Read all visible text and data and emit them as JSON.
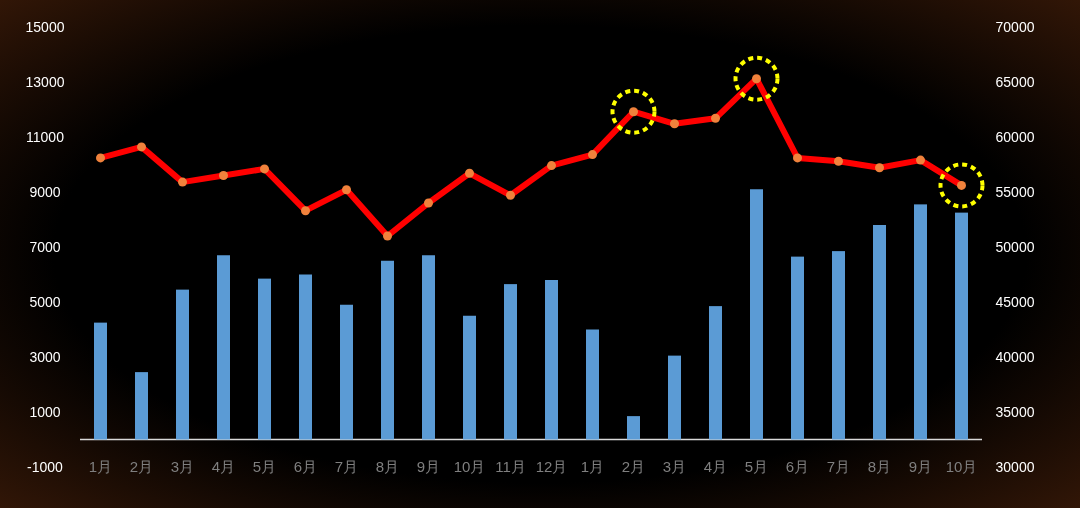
{
  "chart_data": {
    "type": "bar",
    "categories": [
      "1月",
      "2月",
      "3月",
      "4月",
      "5月",
      "6月",
      "7月",
      "8月",
      "9月",
      "10月",
      "11月",
      "12月",
      "1月",
      "2月",
      "3月",
      "4月",
      "5月",
      "6月",
      "7月",
      "8月",
      "9月",
      "10月"
    ],
    "series": [
      {
        "color": "#5b9bd5",
        "values": [
          4250,
          2450,
          5450,
          6700,
          5850,
          6000,
          4900,
          6500,
          6700,
          4500,
          5650,
          5800,
          4000,
          850,
          3050,
          4850,
          9100,
          6650,
          6850,
          7800,
          8550,
          8250
        ]
      },
      {
        "type": "line",
        "axis": "y2",
        "color": "#ff0000",
        "values": [
          58100,
          59100,
          55900,
          56500,
          57100,
          53300,
          55200,
          51000,
          54000,
          56700,
          54700,
          57400,
          58400,
          62300,
          61200,
          61700,
          65300,
          58100,
          57800,
          57200,
          57900,
          55600
        ]
      }
    ],
    "marker": "circle",
    "ylim": [
      -1000,
      15000
    ],
    "yticks": [
      -1000,
      1000,
      3000,
      5000,
      7000,
      9000,
      11000,
      13000,
      15000
    ],
    "y2lim": [
      30000,
      70000
    ],
    "y2ticks": [
      30000,
      35000,
      40000,
      45000,
      50000,
      55000,
      60000,
      65000,
      70000
    ],
    "grid": false
  }
}
